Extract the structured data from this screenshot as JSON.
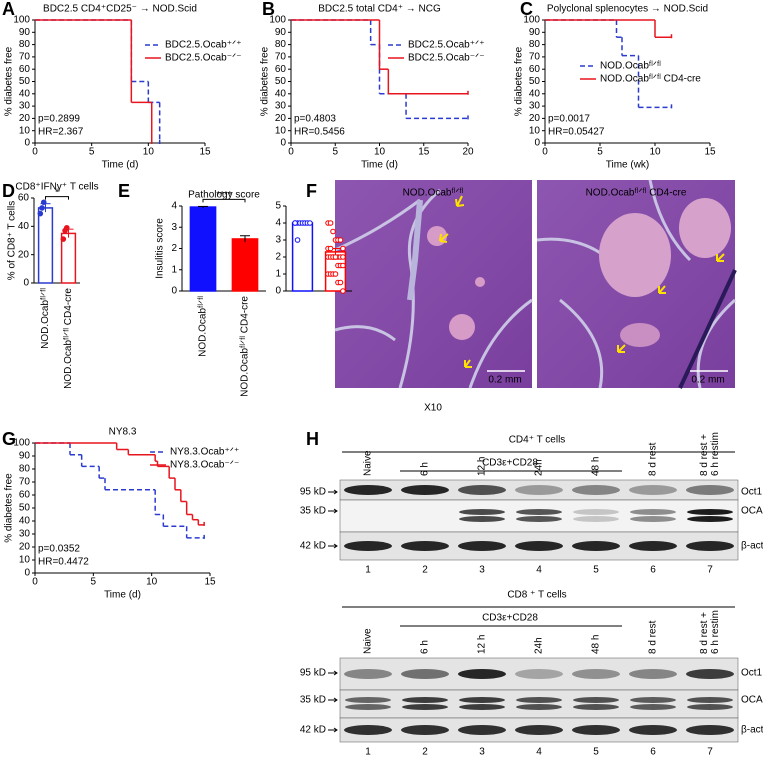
{
  "panel_labels": [
    "A",
    "B",
    "C",
    "D",
    "E",
    "F",
    "G",
    "H"
  ],
  "chart_data": [
    {
      "type": "km",
      "title": "BDC2.5 CD4⁺CD25⁻ → NOD.Scid",
      "x_label": "Time (d)",
      "y_label": "% diabetes free",
      "xlim": [
        0,
        15
      ],
      "xticks": [
        0,
        5,
        10,
        15
      ],
      "ylim": [
        0,
        100
      ],
      "yticks": [
        0,
        10,
        20,
        30,
        40,
        50,
        60,
        70,
        80,
        90,
        100
      ],
      "annotations": [
        "p=0.2899",
        "HR=2.367"
      ],
      "legend": "upper right",
      "series": [
        {
          "name": "BDC2.5.Ocab⁺ᐟ⁺",
          "color": "#2b3bd0",
          "line_style": "dashed",
          "x": [
            0,
            8.5,
            10,
            11
          ],
          "values": [
            100,
            50,
            33,
            0
          ]
        },
        {
          "name": "BDC2.5.Ocab⁻ᐟ⁻",
          "color": "#e8141e",
          "line_style": "solid",
          "x": [
            0,
            8.5,
            10.3
          ],
          "values": [
            100,
            33,
            0
          ]
        }
      ]
    },
    {
      "type": "km",
      "title": "BDC2.5 total CD4⁺ → NCG",
      "x_label": "Time (d)",
      "y_label": "% diabetes free",
      "xlim": [
        0,
        20
      ],
      "xticks": [
        0,
        5,
        10,
        15,
        20
      ],
      "ylim": [
        0,
        100
      ],
      "yticks": [
        0,
        10,
        20,
        30,
        40,
        50,
        60,
        70,
        80,
        90,
        100
      ],
      "annotations": [
        "p=0.4803",
        "HR=0.5456"
      ],
      "legend": "upper right",
      "series": [
        {
          "name": "BDC2.5.Ocab⁺ᐟ⁺",
          "color": "#2b3bd0",
          "line_style": "dashed",
          "x": [
            0,
            9,
            10,
            13,
            20
          ],
          "values": [
            100,
            80,
            40,
            20,
            20
          ]
        },
        {
          "name": "BDC2.5.Ocab⁻ᐟ⁻",
          "color": "#e8141e",
          "line_style": "solid",
          "x": [
            0,
            10,
            11,
            20
          ],
          "values": [
            100,
            60,
            40,
            40
          ]
        }
      ]
    },
    {
      "type": "km",
      "title": "Polyclonal splenocytes → NOD.Scid",
      "x_label": "Time (wk)",
      "y_label": "% diabetes free",
      "xlim": [
        0,
        15
      ],
      "xticks": [
        0,
        5,
        10,
        15
      ],
      "ylim": [
        0,
        100
      ],
      "yticks": [
        0,
        10,
        20,
        30,
        40,
        50,
        60,
        70,
        80,
        90,
        100
      ],
      "annotations": [
        "p=0.0017",
        "HR=0.05427"
      ],
      "legend": "upper right",
      "series": [
        {
          "name": "NOD.Ocabᶠˡᐟᶠˡ",
          "color": "#2b3bd0",
          "line_style": "dashed",
          "x": [
            0,
            6.5,
            7,
            8.5,
            11.5
          ],
          "values": [
            100,
            86,
            71,
            29,
            29
          ]
        },
        {
          "name": "NOD.Ocabᶠˡᐟᶠˡ CD4-cre",
          "color": "#e8141e",
          "line_style": "solid",
          "x": [
            0,
            10,
            11.5
          ],
          "values": [
            100,
            86,
            86
          ]
        }
      ]
    },
    {
      "type": "bar",
      "title": "CD8⁺IFNγ⁺ T cells",
      "y_label": "% of CD8⁺ T cells",
      "fill_style": "open",
      "point_style": "filled",
      "categories": [
        "NOD.Ocabᶠˡᐟᶠˡ",
        "NOD.Ocabᶠˡᐟᶠˡ CD4-cre"
      ],
      "colors": [
        "#2b3bd0",
        "#e8141e"
      ],
      "values": [
        53,
        35
      ],
      "errors": [
        3,
        3
      ],
      "points": [
        [
          49,
          53,
          57
        ],
        [
          31,
          37,
          39
        ]
      ],
      "significance": "*",
      "ylim": [
        0,
        60
      ],
      "yticks": [
        0,
        20,
        40,
        60
      ]
    },
    {
      "type": "bar",
      "title": "Pathology score",
      "y_label": "Insulitis score",
      "fill_style": "filled",
      "categories": [
        "NOD.Ocabᶠˡᐟᶠˡ",
        "NOD.Ocabᶠˡᐟᶠˡ CD4-cre"
      ],
      "colors": [
        "#1010ff",
        "#ff0000"
      ],
      "values": [
        3.95,
        2.45
      ],
      "errors": [
        0.03,
        0.15
      ],
      "significance": "****",
      "ylim": [
        0,
        4
      ],
      "yticks": [
        0,
        1,
        2,
        3,
        4
      ]
    },
    {
      "type": "bar",
      "fill_style": "open",
      "point_style": "open",
      "categories": [
        null,
        null
      ],
      "colors": [
        "#1010ff",
        "#ff0000"
      ],
      "values": [
        4,
        2.3
      ],
      "errors": [
        0.05,
        0.2
      ],
      "points": [
        [
          4,
          4,
          4,
          4,
          4,
          4,
          4,
          4,
          3
        ],
        [
          4,
          4,
          3.5,
          3,
          3,
          3,
          2.5,
          2.5,
          2.5,
          2,
          2,
          2,
          2,
          2,
          2,
          2,
          2,
          2,
          1.5,
          1.5,
          1.5,
          1,
          1,
          1,
          1,
          0.5,
          0.5,
          0
        ]
      ],
      "ylim": [
        0,
        5
      ],
      "yticks": [
        0,
        1,
        2,
        3,
        4,
        5
      ]
    },
    {
      "type": "km",
      "title": "NY8.3",
      "x_label": "Time (d)",
      "y_label": "% diabetes free",
      "xlim": [
        0,
        15
      ],
      "xticks": [
        0,
        5,
        10,
        15
      ],
      "ylim": [
        0,
        100
      ],
      "yticks": [
        0,
        10,
        20,
        30,
        40,
        50,
        60,
        70,
        80,
        90,
        100
      ],
      "annotations": [
        "p=0.0352",
        "HR=0.4472"
      ],
      "legend": "upper right",
      "series": [
        {
          "name": "NY8.3.Ocab⁺ᐟ⁺",
          "color": "#2b3bd0",
          "line_style": "dashed",
          "x": [
            0,
            3,
            4,
            5.5,
            6,
            10.3,
            11,
            13,
            14.5
          ],
          "values": [
            100,
            91,
            82,
            73,
            64,
            45,
            36,
            27,
            27
          ]
        },
        {
          "name": "NY8.3.Ocab⁻ᐟ⁻",
          "color": "#e8141e",
          "line_style": "solid",
          "x": [
            0,
            7,
            8,
            10.3,
            10.5,
            11.5,
            12,
            12.5,
            13,
            13.5,
            14,
            14.5
          ],
          "values": [
            100,
            95,
            91,
            86,
            82,
            73,
            64,
            55,
            45,
            41,
            37,
            37
          ]
        }
      ]
    }
  ],
  "panel_f": {
    "images": [
      {
        "label": "NOD.Ocabᶠˡᐟᶠˡ",
        "scale_bar": "0.2 mm"
      },
      {
        "label": "NOD.Ocabᶠˡᐟᶠˡ CD4-cre",
        "scale_bar": "0.2 mm"
      }
    ],
    "magnification": "X10"
  },
  "panel_h": {
    "blots": [
      {
        "title": "CD4⁺ T cells",
        "treatment": "CD3ε+CD28",
        "lanes": [
          [
            "Naive"
          ],
          [
            "6 h"
          ],
          [
            "12 h"
          ],
          [
            "24h"
          ],
          [
            "48 h"
          ],
          [
            "8 d rest"
          ],
          [
            "8 d rest +",
            "6 h restim"
          ]
        ],
        "lane_numbers": [
          "1",
          "2",
          "3",
          "4",
          "5",
          "6",
          "7"
        ],
        "markers": [
          "95 kD",
          "35 kD",
          "42 kD"
        ],
        "proteins": [
          "Oct1",
          "OCA-B",
          "β-actin"
        ]
      },
      {
        "title": "CD8 ⁺ T cells",
        "treatment": "CD3ε+CD28",
        "lanes": [
          [
            "Naive"
          ],
          [
            "6 h"
          ],
          [
            "12 h"
          ],
          [
            "24h"
          ],
          [
            "48 h"
          ],
          [
            "8 d rest"
          ],
          [
            "8 d rest +",
            "6 h restim"
          ]
        ],
        "lane_numbers": [
          "1",
          "2",
          "3",
          "4",
          "5",
          "6",
          "7"
        ],
        "markers": [
          "95 kD",
          "35 kD",
          "42 kD"
        ],
        "proteins": [
          "Oct1",
          "OCA-B",
          "β-actin"
        ]
      }
    ]
  }
}
